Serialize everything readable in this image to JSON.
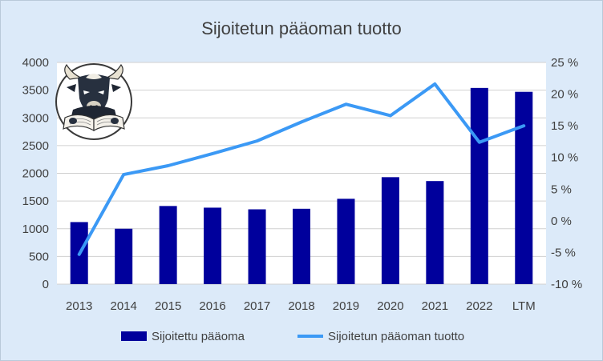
{
  "chart_data": {
    "type": "bar",
    "title": "Sijoitetun pääoman tuotto",
    "categories": [
      "2013",
      "2014",
      "2015",
      "2016",
      "2017",
      "2018",
      "2019",
      "2020",
      "2021",
      "2022",
      "LTM"
    ],
    "series": [
      {
        "name": "Sijoitettu pääoma",
        "type": "bar",
        "axis": "left",
        "color": "#00009c",
        "values": [
          1120,
          1000,
          1410,
          1380,
          1350,
          1360,
          1540,
          1930,
          1860,
          3540,
          3470
        ]
      },
      {
        "name": "Sijoitetun pääoman tuotto",
        "type": "line",
        "axis": "right",
        "color": "#3b99f5",
        "values": [
          -5.3,
          7.3,
          8.7,
          10.6,
          12.6,
          15.6,
          18.4,
          16.6,
          21.6,
          12.4,
          15.0
        ]
      }
    ],
    "y_left": {
      "range": [
        0,
        4000
      ],
      "ticks": [
        0,
        500,
        1000,
        1500,
        2000,
        2500,
        3000,
        3500,
        4000
      ],
      "tick_labels": [
        "0",
        "500",
        "1000",
        "1500",
        "2000",
        "2500",
        "3000",
        "3500",
        "4000"
      ]
    },
    "y_right": {
      "range": [
        -10,
        25
      ],
      "ticks": [
        -10,
        -5,
        0,
        5,
        10,
        15,
        20,
        25
      ],
      "tick_labels": [
        "-10 %",
        "-5 %",
        "0 %",
        "5 %",
        "10 %",
        "15 %",
        "20 %",
        "25 %"
      ]
    },
    "grid": true,
    "legend_position": "bottom",
    "logo": "bull-reading-book-logo",
    "plot_background": "#ffffff",
    "chart_background": "#dceaf9"
  }
}
